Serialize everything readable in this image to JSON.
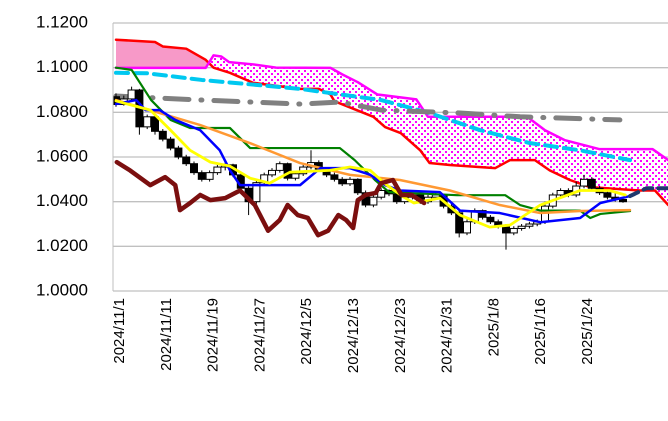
{
  "chart_data": {
    "type": "line",
    "title": "",
    "xlabel": "",
    "ylabel": "",
    "ylim": [
      1.0,
      1.12
    ],
    "yticks": [
      "1.0000",
      "1.0200",
      "1.0400",
      "1.0600",
      "1.0800",
      "1.1000",
      "1.1200"
    ],
    "ytick_values": [
      1.0,
      1.02,
      1.04,
      1.06,
      1.08,
      1.1,
      1.12
    ],
    "xlim": [
      0,
      71
    ],
    "grid": true,
    "xtick_labels": [
      {
        "i": 0,
        "label": "2024/11/1"
      },
      {
        "i": 6,
        "label": "2024/11/11"
      },
      {
        "i": 12,
        "label": "2024/11/19"
      },
      {
        "i": 18,
        "label": "2024/11/27"
      },
      {
        "i": 24,
        "label": "2024/12/5"
      },
      {
        "i": 30,
        "label": "2024/12/13"
      },
      {
        "i": 36,
        "label": "2024/12/23"
      },
      {
        "i": 42,
        "label": "2024/12/31"
      },
      {
        "i": 48,
        "label": "2025/1/8"
      },
      {
        "i": 54,
        "label": "2025/1/16"
      },
      {
        "i": 60,
        "label": "2025/1/24"
      }
    ],
    "candles_ohlc": [
      [
        1.087,
        1.0885,
        1.0825,
        1.0835
      ],
      [
        1.0835,
        1.0875,
        1.083,
        1.086
      ],
      [
        1.086,
        1.0915,
        1.085,
        1.09
      ],
      [
        1.09,
        1.0905,
        1.07,
        1.0735
      ],
      [
        1.0735,
        1.079,
        1.0725,
        1.078
      ],
      [
        1.078,
        1.079,
        1.07,
        1.0715
      ],
      [
        1.0715,
        1.0725,
        1.067,
        1.068
      ],
      [
        1.068,
        1.069,
        1.063,
        1.064
      ],
      [
        1.064,
        1.065,
        1.059,
        1.06
      ],
      [
        1.06,
        1.061,
        1.056,
        1.057
      ],
      [
        1.057,
        1.058,
        1.052,
        1.053
      ],
      [
        1.053,
        1.054,
        1.049,
        1.05
      ],
      [
        1.05,
        1.054,
        1.049,
        1.053
      ],
      [
        1.053,
        1.0565,
        1.052,
        1.0555
      ],
      [
        1.0555,
        1.058,
        1.054,
        1.0565
      ],
      [
        1.0565,
        1.057,
        1.051,
        1.052
      ],
      [
        1.052,
        1.053,
        1.045,
        1.046
      ],
      [
        1.046,
        1.047,
        1.034,
        1.04
      ],
      [
        1.04,
        1.0495,
        1.039,
        1.0485
      ],
      [
        1.0485,
        1.053,
        1.0475,
        1.052
      ],
      [
        1.052,
        1.055,
        1.051,
        1.054
      ],
      [
        1.054,
        1.058,
        1.053,
        1.057
      ],
      [
        1.057,
        1.0575,
        1.0495,
        1.0505
      ],
      [
        1.0505,
        1.0535,
        1.0495,
        1.0525
      ],
      [
        1.0525,
        1.0565,
        1.0515,
        1.0555
      ],
      [
        1.0555,
        1.063,
        1.0545,
        1.0575
      ],
      [
        1.0575,
        1.0585,
        1.0535,
        1.0545
      ],
      [
        1.0545,
        1.0555,
        1.051,
        1.052
      ],
      [
        1.052,
        1.053,
        1.049,
        1.05
      ],
      [
        1.05,
        1.051,
        1.047,
        1.048
      ],
      [
        1.048,
        1.051,
        1.047,
        1.05
      ],
      [
        1.05,
        1.0505,
        1.043,
        1.044
      ],
      [
        1.044,
        1.045,
        1.0375,
        1.0385
      ],
      [
        1.0385,
        1.043,
        1.0375,
        1.042
      ],
      [
        1.042,
        1.046,
        1.041,
        1.045
      ],
      [
        1.045,
        1.0455,
        1.0425,
        1.0435
      ],
      [
        1.0435,
        1.044,
        1.039,
        1.04
      ],
      [
        1.04,
        1.043,
        1.039,
        1.042
      ],
      [
        1.042,
        1.044,
        1.041,
        1.043
      ],
      [
        1.043,
        1.0435,
        1.039,
        1.04
      ],
      [
        1.04,
        1.043,
        1.039,
        1.042
      ],
      [
        1.042,
        1.044,
        1.041,
        1.043
      ],
      [
        1.043,
        1.0435,
        1.037,
        1.038
      ],
      [
        1.038,
        1.039,
        1.034,
        1.035
      ],
      [
        1.035,
        1.036,
        1.024,
        1.026
      ],
      [
        1.026,
        1.032,
        1.025,
        1.031
      ],
      [
        1.031,
        1.037,
        1.03,
        1.036
      ],
      [
        1.036,
        1.0365,
        1.032,
        1.033
      ],
      [
        1.033,
        1.034,
        1.03,
        1.031
      ],
      [
        1.031,
        1.032,
        1.028,
        1.029
      ],
      [
        1.029,
        1.03,
        1.0185,
        1.026
      ],
      [
        1.026,
        1.029,
        1.025,
        1.028
      ],
      [
        1.028,
        1.03,
        1.027,
        1.029
      ],
      [
        1.029,
        1.031,
        1.028,
        1.03
      ],
      [
        1.03,
        1.032,
        1.029,
        1.031
      ],
      [
        1.031,
        1.04,
        1.03,
        1.038
      ],
      [
        1.038,
        1.044,
        1.037,
        1.043
      ],
      [
        1.043,
        1.046,
        1.042,
        1.045
      ],
      [
        1.045,
        1.046,
        1.042,
        1.043
      ],
      [
        1.043,
        1.049,
        1.042,
        1.047
      ],
      [
        1.047,
        1.052,
        1.046,
        1.05
      ],
      [
        1.05,
        1.051,
        1.045,
        1.046
      ],
      [
        1.046,
        1.047,
        1.043,
        1.044
      ],
      [
        1.044,
        1.045,
        1.041,
        1.042
      ],
      [
        1.042,
        1.044,
        1.04,
        1.041
      ],
      [
        1.041,
        1.042,
        1.0395,
        1.04
      ]
    ],
    "cloud": {
      "solid_color": "#f799c8",
      "dot_color": "#ff00ff"
    },
    "series": [
      {
        "name": "span-a",
        "color": "#ff0000",
        "width": 2.5,
        "dash": "",
        "points": [
          [
            0,
            1.1125
          ],
          [
            5,
            1.1115
          ],
          [
            6,
            1.1095
          ],
          [
            9,
            1.1085
          ],
          [
            11.5,
            1.1035
          ],
          [
            12.5,
            1.1
          ],
          [
            14.6,
            1.0977
          ],
          [
            17.6,
            1.0932
          ],
          [
            23.6,
            1.0905
          ],
          [
            26,
            1.0905
          ],
          [
            27.5,
            1.088
          ],
          [
            28,
            1.085
          ],
          [
            33,
            1.078
          ],
          [
            34.5,
            1.0734
          ],
          [
            36.5,
            1.0707
          ],
          [
            39,
            1.063
          ],
          [
            40.2,
            1.0573
          ],
          [
            42.8,
            1.0564
          ],
          [
            48.6,
            1.055
          ],
          [
            50.5,
            1.0586
          ],
          [
            53.7,
            1.0586
          ],
          [
            55.6,
            1.054
          ],
          [
            58.2,
            1.0497
          ],
          [
            60.8,
            1.0465
          ],
          [
            67.2,
            1.045
          ],
          [
            69.1,
            1.045
          ],
          [
            70.8,
            1.0385
          ]
        ]
      },
      {
        "name": "span-b",
        "color": "#ff00ff",
        "width": 2.5,
        "dash": "",
        "points": [
          [
            0,
            1.0999
          ],
          [
            11.5,
            1.0999
          ],
          [
            12.5,
            1.1055
          ],
          [
            13.5,
            1.105
          ],
          [
            14.5,
            1.1025
          ],
          [
            17.5,
            1.1015
          ],
          [
            20.5,
            1.1
          ],
          [
            27.5,
            1.0999
          ],
          [
            29,
            1.097
          ],
          [
            31,
            1.0935
          ],
          [
            33.5,
            1.088
          ],
          [
            38.5,
            1.0858
          ],
          [
            40,
            1.078
          ],
          [
            52.7,
            1.078
          ],
          [
            55,
            1.072
          ],
          [
            57.5,
            1.0676
          ],
          [
            62,
            1.0635
          ],
          [
            68.8,
            1.0635
          ],
          [
            70.8,
            1.0586
          ]
        ]
      },
      {
        "name": "cyan-dashed",
        "color": "#00c8f0",
        "width": 4,
        "dash": "12 7",
        "points": [
          [
            0,
            1.0977
          ],
          [
            4,
            1.0975
          ],
          [
            11,
            1.0945
          ],
          [
            23.6,
            1.0905
          ],
          [
            34,
            1.0855
          ],
          [
            40.2,
            1.0797
          ],
          [
            46.7,
            1.072
          ],
          [
            53.1,
            1.0662
          ],
          [
            59.5,
            1.063
          ],
          [
            65.9,
            1.0586
          ]
        ]
      },
      {
        "name": "gray-dashdot",
        "color": "#808080",
        "width": 5,
        "dash": "24 12 1 12",
        "points": [
          [
            0,
            1.0873
          ],
          [
            11,
            1.0855
          ],
          [
            23.6,
            1.0837
          ],
          [
            28.7,
            1.0846
          ],
          [
            34,
            1.081
          ],
          [
            44.1,
            1.0797
          ],
          [
            51.8,
            1.078
          ],
          [
            64.6,
            1.0766
          ]
        ]
      },
      {
        "name": "kijun",
        "color": "#008000",
        "width": 2.2,
        "dash": "",
        "points": [
          [
            0,
            1.1
          ],
          [
            2,
            1.099
          ],
          [
            4.5,
            1.0855
          ],
          [
            7,
            1.0766
          ],
          [
            9.5,
            1.073
          ],
          [
            14.6,
            1.073
          ],
          [
            17.2,
            1.064
          ],
          [
            28.7,
            1.064
          ],
          [
            30.6,
            1.0586
          ],
          [
            33.2,
            1.0497
          ],
          [
            35,
            1.0443
          ],
          [
            43.7,
            1.0429
          ],
          [
            49.9,
            1.0429
          ],
          [
            51.8,
            1.0385
          ],
          [
            54.4,
            1.036
          ],
          [
            59.5,
            1.036
          ],
          [
            60.8,
            1.0327
          ],
          [
            62.1,
            1.0345
          ],
          [
            65.9,
            1.0358
          ]
        ]
      },
      {
        "name": "orange-line",
        "color": "#ff9933",
        "width": 2.5,
        "dash": "",
        "points": [
          [
            0,
            1.0855
          ],
          [
            10.8,
            1.0743
          ],
          [
            17.2,
            1.0662
          ],
          [
            23.6,
            1.0573
          ],
          [
            30,
            1.052
          ],
          [
            36.4,
            1.0497
          ],
          [
            42.8,
            1.045
          ],
          [
            49.2,
            1.0385
          ],
          [
            54.4,
            1.0349
          ],
          [
            59.5,
            1.0358
          ],
          [
            65.9,
            1.0362
          ]
        ]
      },
      {
        "name": "tenkan",
        "color": "#0000ff",
        "width": 2.5,
        "dash": "",
        "points": [
          [
            0,
            1.0837
          ],
          [
            2.6,
            1.0855
          ],
          [
            3.8,
            1.081
          ],
          [
            5.6,
            1.081
          ],
          [
            7.6,
            1.0766
          ],
          [
            10.8,
            1.072
          ],
          [
            13.3,
            1.063
          ],
          [
            14.6,
            1.0541
          ],
          [
            15.9,
            1.0474
          ],
          [
            23.6,
            1.0474
          ],
          [
            26.2,
            1.055
          ],
          [
            30,
            1.055
          ],
          [
            32.6,
            1.052
          ],
          [
            34.5,
            1.0474
          ],
          [
            36.4,
            1.045
          ],
          [
            41.5,
            1.0443
          ],
          [
            44.1,
            1.036
          ],
          [
            49.2,
            1.0349
          ],
          [
            54.4,
            1.0308
          ],
          [
            59.5,
            1.0327
          ],
          [
            62.1,
            1.0394
          ],
          [
            65.9,
            1.0425
          ]
        ]
      },
      {
        "name": "navy-projection",
        "color": "#1f3a6e",
        "width": 4,
        "dash": "9 6",
        "points": [
          [
            65.9,
            1.0425
          ],
          [
            68,
            1.046
          ],
          [
            70.8,
            1.046
          ]
        ]
      },
      {
        "name": "yellow-line",
        "color": "#ffff00",
        "width": 2.8,
        "dash": "",
        "points": [
          [
            0,
            1.0851
          ],
          [
            4.4,
            1.081
          ],
          [
            7,
            1.072
          ],
          [
            9.5,
            1.063
          ],
          [
            12.1,
            1.0577
          ],
          [
            14.6,
            1.0559
          ],
          [
            17.2,
            1.0505
          ],
          [
            19.7,
            1.0483
          ],
          [
            22.3,
            1.0532
          ],
          [
            27.4,
            1.054
          ],
          [
            30,
            1.0555
          ],
          [
            32.6,
            1.054
          ],
          [
            34.5,
            1.048
          ],
          [
            36.9,
            1.042
          ],
          [
            38.2,
            1.0394
          ],
          [
            41.5,
            1.0416
          ],
          [
            44.1,
            1.034
          ],
          [
            47.9,
            1.0286
          ],
          [
            50.5,
            1.0295
          ],
          [
            54.4,
            1.0385
          ],
          [
            59.5,
            1.045
          ],
          [
            63.3,
            1.045
          ],
          [
            65.3,
            1.043
          ]
        ]
      },
      {
        "name": "chikou",
        "color": "#7b0f0f",
        "width": 4.5,
        "dash": "",
        "points": [
          [
            0.1,
            1.0577
          ],
          [
            1.8,
            1.054
          ],
          [
            4.4,
            1.0474
          ],
          [
            6.3,
            1.051
          ],
          [
            7.6,
            1.0474
          ],
          [
            8.2,
            1.0362
          ],
          [
            9.5,
            1.0394
          ],
          [
            10.8,
            1.043
          ],
          [
            12.1,
            1.0407
          ],
          [
            14,
            1.0416
          ],
          [
            15.9,
            1.045
          ],
          [
            17.8,
            1.0385
          ],
          [
            19.5,
            1.027
          ],
          [
            21,
            1.0318
          ],
          [
            22,
            1.0385
          ],
          [
            23.3,
            1.034
          ],
          [
            24.6,
            1.0327
          ],
          [
            25.9,
            1.025
          ],
          [
            27.2,
            1.027
          ],
          [
            28.5,
            1.034
          ],
          [
            29.5,
            1.0318
          ],
          [
            30.4,
            1.0282
          ],
          [
            31,
            1.0407
          ],
          [
            32,
            1.043
          ],
          [
            33.3,
            1.0439
          ],
          [
            34,
            1.0483
          ],
          [
            35.5,
            1.0497
          ],
          [
            36.6,
            1.043
          ],
          [
            37.9,
            1.043
          ],
          [
            39.5,
            1.0394
          ]
        ]
      }
    ]
  }
}
